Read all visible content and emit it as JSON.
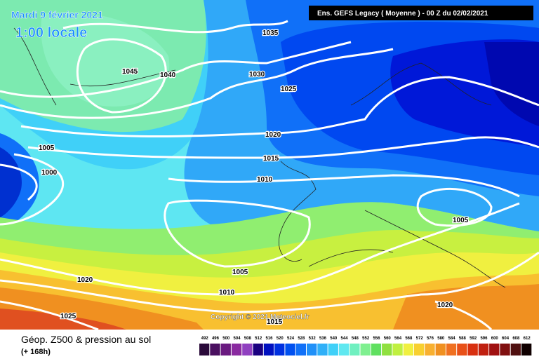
{
  "header": {
    "date": "Mardi 9 février 2021",
    "local_time": "1:00 locale",
    "model": "Ens. GEFS Legacy  ( Moyenne )  -  00 Z du 02/02/2021"
  },
  "isobars": [
    "1035",
    "1045",
    "1040",
    "1030",
    "1025",
    "1020",
    "1015",
    "1010",
    "1005",
    "1000",
    "1005",
    "1005",
    "1010",
    "1020",
    "1025",
    "1020",
    "1015"
  ],
  "copyright": "Copyright © 2021 Meteociel.fr",
  "footer": {
    "title": "Géop. Z500 & pression au sol",
    "lead": "(+ 168h)"
  },
  "colorbar": {
    "values": [
      492,
      496,
      500,
      504,
      508,
      512,
      516,
      520,
      524,
      528,
      532,
      536,
      540,
      544,
      548,
      552,
      556,
      560,
      564,
      568,
      572,
      576,
      580,
      584,
      588,
      592,
      596,
      600,
      604,
      608,
      612
    ],
    "colors": [
      "#2a0a3a",
      "#4a1060",
      "#6a1a80",
      "#8a2aa0",
      "#9040c0",
      "#1a0080",
      "#0010c0",
      "#0030e0",
      "#0050f0",
      "#1070f8",
      "#2090f8",
      "#30b0f8",
      "#40d0f8",
      "#60e8f0",
      "#70f0c0",
      "#80f090",
      "#60e060",
      "#90e040",
      "#c0f040",
      "#f0f040",
      "#f8d030",
      "#f8b030",
      "#f09020",
      "#f07020",
      "#e85018",
      "#d83010",
      "#c02010",
      "#a01010",
      "#801010",
      "#501010",
      "#100000"
    ]
  }
}
